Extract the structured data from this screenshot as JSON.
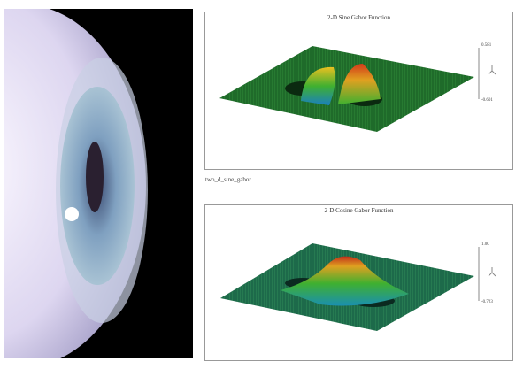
{
  "eye_image": {
    "description_icon": "eye-illustration"
  },
  "plots": [
    {
      "title": "2-D Sine Gabor Function",
      "z_max_label": "0.581",
      "z_min_label": "-0.601"
    },
    {
      "title": "2-D Cosine Gabor Function",
      "z_max_label": "1.00",
      "z_min_label": "-0.723"
    }
  ],
  "caption": "two_d_sine_gabor",
  "colors": {
    "plane": "#1f6b2a",
    "peak": "#d23a1a",
    "trough": "#1a7fc0"
  }
}
